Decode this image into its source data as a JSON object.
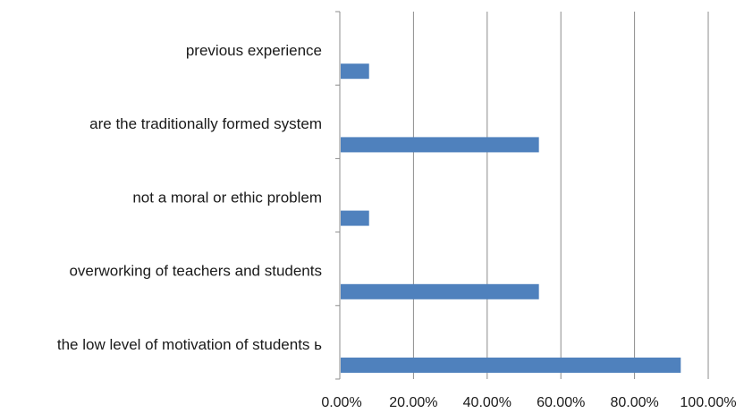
{
  "chart_data": {
    "type": "bar",
    "orientation": "horizontal",
    "title": "",
    "xlabel": "",
    "ylabel": "",
    "categories": [
      "previous experience",
      "are the traditionally formed system",
      "not a moral or ethic problem",
      "overworking of teachers and students",
      "the low level of motivation of students ь"
    ],
    "values": [
      7.7,
      53.8,
      7.7,
      53.8,
      92.3
    ],
    "xlim": [
      0,
      100
    ],
    "x_ticks": [
      0,
      20,
      40,
      60,
      80,
      100
    ],
    "x_tick_labels": [
      "0.00%",
      "20.00%",
      "40.00%",
      "60.00%",
      "80.00%",
      "100.00%"
    ],
    "bar_color": "#4f81bd",
    "gridlines": "vertical",
    "grid_color": "#8c8c8c",
    "legend": "none"
  }
}
